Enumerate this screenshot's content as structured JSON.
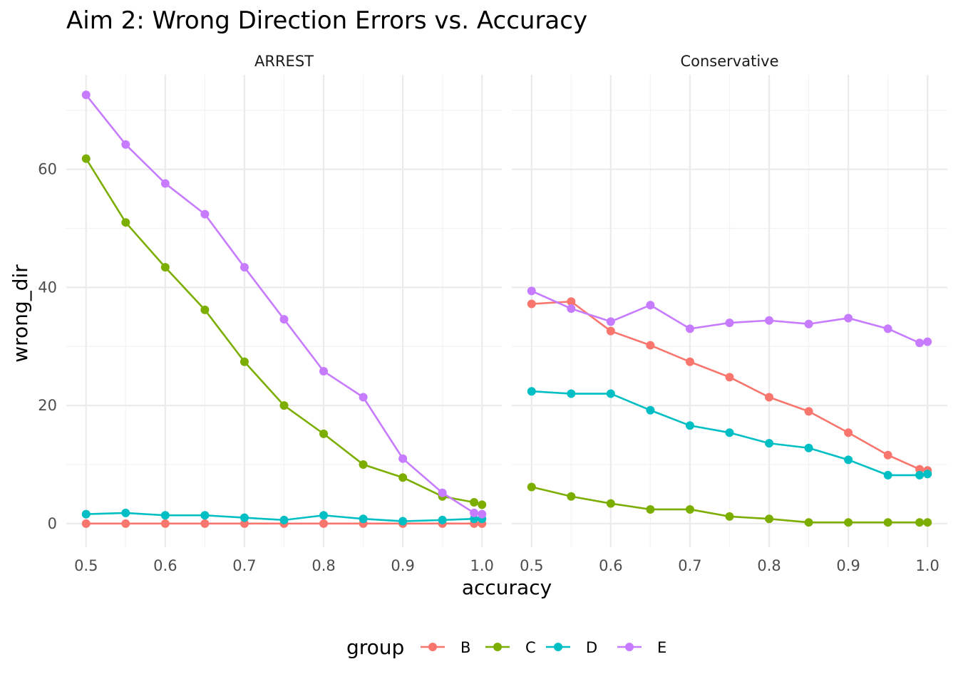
{
  "chart_data": {
    "type": "line",
    "title": "Aim 2: Wrong Direction Errors vs. Accuracy",
    "xlabel": "accuracy",
    "ylabel": "wrong_dir",
    "xlim": [
      0.475,
      1.025
    ],
    "ylim": [
      -4,
      76
    ],
    "x_ticks": [
      "0.5",
      "0.6",
      "0.7",
      "0.8",
      "0.9",
      "1.0"
    ],
    "y_ticks": [
      "0",
      "20",
      "40",
      "60"
    ],
    "grid": true,
    "legend": {
      "title": "group",
      "position": "bottom",
      "entries": [
        "B",
        "C",
        "D",
        "E"
      ]
    },
    "colors": {
      "B": "#F8766D",
      "C": "#7CAE00",
      "D": "#00BFC4",
      "E": "#C77CFF"
    },
    "x": [
      0.5,
      0.55,
      0.6,
      0.65,
      0.7,
      0.75,
      0.8,
      0.85,
      0.9,
      0.95,
      0.99,
      1.0
    ],
    "panels": [
      {
        "label": "ARREST",
        "series": [
          {
            "name": "B",
            "values": [
              0,
              0,
              0,
              0,
              0,
              0,
              0,
              0,
              0,
              0,
              0,
              0
            ]
          },
          {
            "name": "C",
            "values": [
              61.8,
              51,
              43.4,
              36.2,
              27.4,
              20,
              15.2,
              10,
              7.8,
              4.6,
              3.6,
              3.2
            ]
          },
          {
            "name": "D",
            "values": [
              1.6,
              1.8,
              1.4,
              1.4,
              1.0,
              0.6,
              1.4,
              0.8,
              0.4,
              0.6,
              0.8,
              0.8
            ]
          },
          {
            "name": "E",
            "values": [
              72.6,
              64.2,
              57.6,
              52.4,
              43.4,
              34.6,
              25.8,
              21.4,
              11,
              5.2,
              1.8,
              1.6
            ]
          }
        ]
      },
      {
        "label": "Conservative",
        "series": [
          {
            "name": "B",
            "values": [
              37.2,
              37.6,
              32.6,
              30.2,
              27.4,
              24.8,
              21.4,
              19,
              15.4,
              11.6,
              9.2,
              9.0
            ]
          },
          {
            "name": "C",
            "values": [
              6.2,
              4.6,
              3.4,
              2.4,
              2.4,
              1.2,
              0.8,
              0.2,
              0.2,
              0.2,
              0.2,
              0.2
            ]
          },
          {
            "name": "D",
            "values": [
              22.4,
              22,
              22,
              19.2,
              16.6,
              15.4,
              13.6,
              12.8,
              10.8,
              8.2,
              8.2,
              8.4
            ]
          },
          {
            "name": "E",
            "values": [
              39.4,
              36.4,
              34.2,
              37,
              33,
              34,
              34.4,
              33.8,
              34.8,
              33,
              30.6,
              30.8
            ]
          }
        ]
      }
    ]
  }
}
